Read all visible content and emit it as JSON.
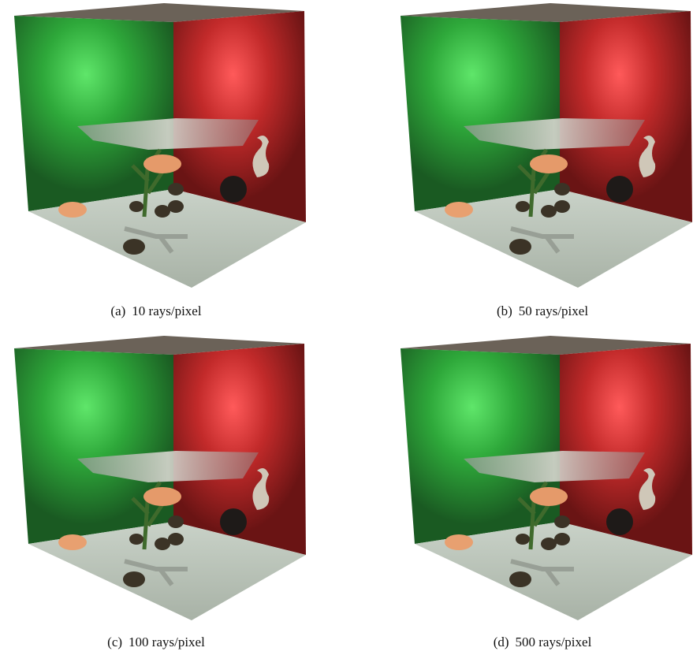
{
  "figure": {
    "panels": [
      {
        "label": "(a)",
        "caption": "10 rays/pixel"
      },
      {
        "label": "(b)",
        "caption": "50 rays/pixel"
      },
      {
        "label": "(c)",
        "caption": "100 rays/pixel"
      },
      {
        "label": "(d)",
        "caption": "500 rays/pixel"
      }
    ]
  }
}
